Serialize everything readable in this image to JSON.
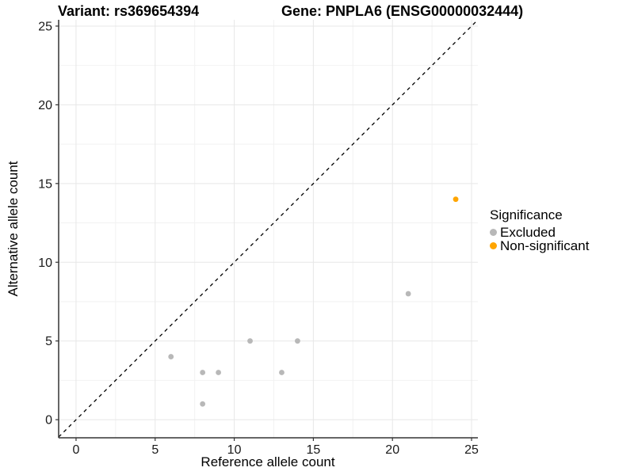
{
  "title": {
    "variant": "Variant: rs369654394",
    "gene": "Gene: PNPLA6 (ENSG00000032444)"
  },
  "chart_data": {
    "type": "scatter",
    "xlabel": "Reference allele count",
    "ylabel": "Alternative allele count",
    "xlim": [
      -1.1,
      25.4
    ],
    "ylim": [
      -1.15,
      25.4
    ],
    "x_ticks": [
      0,
      5,
      10,
      15,
      20,
      25
    ],
    "y_ticks": [
      0,
      5,
      10,
      15,
      20,
      25
    ],
    "minor_tick_interval": 2.5,
    "grid": true,
    "legend_position": "right",
    "reference_line": {
      "type": "abline",
      "intercept": 0,
      "slope": 1,
      "style": "dashed",
      "color": "#000000"
    },
    "series": [
      {
        "name": "Excluded",
        "color": "#B8B8B8",
        "points": [
          [
            6,
            4
          ],
          [
            8,
            1
          ],
          [
            8,
            3
          ],
          [
            9,
            3
          ],
          [
            11,
            5
          ],
          [
            13,
            3
          ],
          [
            14,
            5
          ],
          [
            21,
            8
          ]
        ]
      },
      {
        "name": "Non-significant",
        "color": "#FFA500",
        "points": [
          [
            24,
            14
          ]
        ]
      }
    ]
  },
  "legend": {
    "title": "Significance",
    "items": [
      {
        "label": "Excluded",
        "color": "#B8B8B8"
      },
      {
        "label": "Non-significant",
        "color": "#FFA500"
      }
    ]
  },
  "colors": {
    "background": "#FFFFFF",
    "grid_major": "#E7E7E7",
    "grid_minor": "#F2F2F2",
    "axis_line": "#333333",
    "tick_label": "#1a1a1a"
  }
}
